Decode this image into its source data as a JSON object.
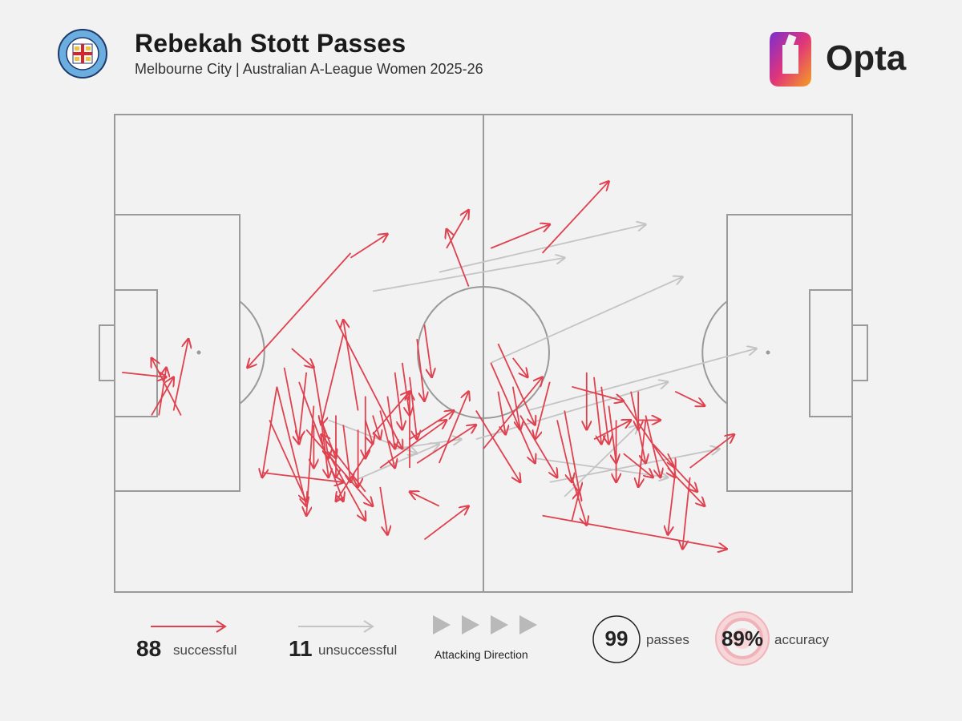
{
  "header": {
    "title": "Rebekah Stott Passes",
    "subtitle": "Melbourne City | Australian A-League Women 2025-26",
    "crest_text_top": "MELBOURNE CITY",
    "crest_text_bottom": "FOOTBALL CLUB",
    "crest_mc": "MC",
    "crest_fc": "FC",
    "brand_name": "Opta"
  },
  "legend": {
    "successful_count": "88",
    "successful_label": "successful",
    "unsuccessful_count": "11",
    "unsuccessful_label": "unsuccessful",
    "direction_label": "Attacking Direction",
    "passes_count": "99",
    "passes_label": "passes",
    "accuracy_value": "89%",
    "accuracy_label": "accuracy"
  },
  "colors": {
    "successful": "#e0414f",
    "unsuccessful": "#c4c4c4",
    "pitch_lines": "#9a9a9a",
    "background": "#f2f2f2"
  },
  "chart_data": {
    "type": "scatter",
    "title": "Rebekah Stott Passes",
    "note": "Pass map: each pass is an arrow from (x1,y1) to (x2,y2) in pitch coordinates (0-100 along pitch length, 0-100 across width, y=0 at top). Attacking direction left to right.",
    "xlim": [
      0,
      100
    ],
    "ylim": [
      0,
      100
    ],
    "series": [
      {
        "name": "successful",
        "passes": [
          [
            1,
            54,
            7,
            55
          ],
          [
            5,
            63,
            8,
            55
          ],
          [
            6,
            63,
            7,
            53
          ],
          [
            9,
            63,
            5,
            51
          ],
          [
            8,
            62,
            10,
            47
          ],
          [
            32,
            29,
            18,
            53
          ],
          [
            20,
            75,
            31,
            77
          ],
          [
            29,
            71,
            34,
            85
          ],
          [
            34,
            79,
            28,
            67
          ],
          [
            58,
            84,
            83,
            91
          ],
          [
            42,
            89,
            48,
            82
          ],
          [
            44,
            82,
            40,
            79
          ],
          [
            33,
            62,
            31,
            43
          ],
          [
            31,
            46,
            28,
            65
          ],
          [
            30,
            43,
            39,
            70
          ],
          [
            22,
            57,
            20,
            76
          ],
          [
            25,
            56,
            31,
            81
          ],
          [
            21,
            64,
            26,
            81
          ],
          [
            22,
            57,
            26,
            82
          ],
          [
            34,
            59,
            34,
            72
          ],
          [
            36,
            62,
            38,
            74
          ],
          [
            27,
            61,
            26,
            84
          ],
          [
            28,
            64,
            30,
            72
          ],
          [
            26,
            66,
            35,
            82
          ],
          [
            35,
            69,
            30,
            81
          ],
          [
            36,
            78,
            37,
            88
          ],
          [
            23,
            53,
            25,
            69
          ],
          [
            24,
            49,
            27,
            53
          ],
          [
            26,
            54,
            25,
            68
          ],
          [
            27,
            53,
            29,
            72
          ],
          [
            27,
            65,
            27,
            74
          ],
          [
            28,
            64,
            29,
            76
          ],
          [
            30,
            63,
            30,
            76
          ],
          [
            31,
            65,
            32,
            77
          ],
          [
            33,
            66,
            33,
            78
          ],
          [
            34,
            64,
            35,
            69
          ],
          [
            35,
            63,
            36,
            68
          ],
          [
            37,
            59,
            38,
            70
          ],
          [
            38,
            54,
            39,
            66
          ],
          [
            39,
            52,
            40,
            63
          ],
          [
            40,
            55,
            41,
            68
          ],
          [
            41,
            47,
            42,
            60
          ],
          [
            42,
            44,
            43,
            55
          ],
          [
            40,
            68,
            46,
            62
          ],
          [
            50,
            70,
            58,
            55
          ],
          [
            35,
            67,
            40,
            58
          ],
          [
            36,
            74,
            45,
            64
          ],
          [
            40,
            74,
            40,
            58
          ],
          [
            41,
            73,
            49,
            65
          ],
          [
            44,
            73,
            48,
            58
          ],
          [
            49,
            62,
            55,
            77
          ],
          [
            51,
            52,
            57,
            73
          ],
          [
            52,
            48,
            57,
            65
          ],
          [
            54,
            51,
            56,
            55
          ],
          [
            54,
            57,
            55,
            66
          ],
          [
            52,
            58,
            53,
            67
          ],
          [
            55,
            63,
            60,
            76
          ],
          [
            59,
            56,
            57,
            68
          ],
          [
            60,
            64,
            62,
            77
          ],
          [
            61,
            62,
            63,
            79
          ],
          [
            62,
            57,
            69,
            60
          ],
          [
            64,
            54,
            64,
            66
          ],
          [
            65,
            55,
            66,
            69
          ],
          [
            66,
            57,
            67,
            69
          ],
          [
            67,
            61,
            68,
            73
          ],
          [
            68,
            64,
            68,
            77
          ],
          [
            62,
            76,
            64,
            86
          ],
          [
            69,
            60,
            76,
            76
          ],
          [
            70,
            58,
            72,
            73
          ],
          [
            72,
            63,
            74,
            76
          ],
          [
            72,
            64,
            71,
            78
          ],
          [
            73,
            69,
            79,
            79
          ],
          [
            75,
            74,
            80,
            82
          ],
          [
            76,
            75,
            75,
            88
          ],
          [
            62,
            85,
            63,
            79
          ],
          [
            75,
            71,
            76,
            74
          ],
          [
            78,
            76,
            77,
            91
          ],
          [
            78,
            74,
            84,
            67
          ],
          [
            65,
            68,
            70,
            64
          ],
          [
            71,
            64,
            74,
            64
          ],
          [
            76,
            58,
            80,
            61
          ],
          [
            71,
            58,
            71,
            66
          ],
          [
            69,
            71,
            73,
            76
          ],
          [
            51,
            28,
            59,
            23
          ],
          [
            58,
            29,
            67,
            14
          ],
          [
            45,
            28,
            48,
            20
          ],
          [
            48,
            36,
            45,
            24
          ],
          [
            32,
            30,
            37,
            25
          ]
        ]
      },
      {
        "name": "unsuccessful",
        "passes": [
          [
            35,
            37,
            61,
            30
          ],
          [
            44,
            33,
            72,
            23
          ],
          [
            51,
            52,
            77,
            34
          ],
          [
            56,
            62,
            87,
            49
          ],
          [
            61,
            80,
            71,
            65
          ],
          [
            49,
            68,
            75,
            56
          ],
          [
            59,
            77,
            82,
            70
          ],
          [
            32,
            77,
            44,
            69
          ],
          [
            38,
            70,
            47,
            68
          ],
          [
            29,
            64,
            41,
            71
          ],
          [
            57,
            72,
            75,
            76
          ]
        ]
      }
    ],
    "xlabel": "",
    "ylabel": "",
    "legend": [
      "successful",
      "unsuccessful"
    ],
    "grid": false
  }
}
